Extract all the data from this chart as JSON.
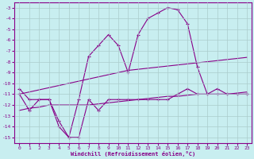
{
  "xlabel": "Windchill (Refroidissement éolien,°C)",
  "background_color": "#c8eef0",
  "grid_color": "#aacccc",
  "line_color": "#880088",
  "xlim": [
    -0.5,
    23.5
  ],
  "ylim": [
    -15.5,
    -2.5
  ],
  "yticks": [
    -15,
    -14,
    -13,
    -12,
    -11,
    -10,
    -9,
    -8,
    -7,
    -6,
    -5,
    -4,
    -3
  ],
  "xticks": [
    0,
    1,
    2,
    3,
    4,
    5,
    6,
    7,
    8,
    9,
    10,
    11,
    12,
    13,
    14,
    15,
    16,
    17,
    18,
    19,
    20,
    21,
    22,
    23
  ],
  "series": [
    {
      "x": [
        0,
        1,
        2,
        3,
        4,
        5,
        6,
        7,
        8,
        9,
        10,
        11,
        12,
        13,
        14,
        15,
        16,
        17,
        18,
        19,
        20,
        21,
        22,
        23
      ],
      "y": [
        -10.5,
        -11.5,
        -11.5,
        -11.5,
        -13.5,
        -15.0,
        -15.0,
        -11.5,
        -12.5,
        -11.5,
        -11.5,
        -11.5,
        -11.5,
        -11.5,
        -11.5,
        -11.5,
        -11.0,
        -10.5,
        -11.0,
        -11.0,
        -10.5,
        -11.0,
        -11.0,
        -11.0
      ],
      "has_markers": true,
      "lw": 0.8
    },
    {
      "x": [
        0,
        1,
        2,
        3,
        4,
        5,
        6,
        7,
        8,
        9,
        10,
        11,
        12,
        13,
        14,
        15,
        16,
        17,
        18,
        19,
        20,
        21,
        22,
        23
      ],
      "y": [
        -11.0,
        -12.5,
        -11.5,
        -11.5,
        -14.0,
        -15.0,
        -11.5,
        -7.5,
        -6.5,
        -5.5,
        -6.5,
        -9.0,
        -5.5,
        -4.0,
        -3.5,
        -3.0,
        -3.2,
        -4.5,
        -8.5,
        -11.0,
        -11.0,
        -11.0,
        -11.0,
        -11.0
      ],
      "has_markers": true,
      "lw": 0.8
    },
    {
      "x": [
        0,
        1,
        2,
        3,
        4,
        5,
        6,
        7,
        8,
        9,
        10,
        11,
        12,
        13,
        14,
        15,
        16,
        17,
        18,
        19,
        20,
        21,
        22,
        23
      ],
      "y": [
        -11.0,
        -10.8,
        -10.6,
        -10.4,
        -10.2,
        -10.0,
        -9.8,
        -9.6,
        -9.4,
        -9.2,
        -9.0,
        -8.8,
        -8.7,
        -8.6,
        -8.5,
        -8.4,
        -8.3,
        -8.2,
        -8.1,
        -8.0,
        -7.9,
        -7.8,
        -7.7,
        -7.6
      ],
      "has_markers": false,
      "lw": 0.8
    },
    {
      "x": [
        0,
        1,
        2,
        3,
        4,
        5,
        6,
        7,
        8,
        9,
        10,
        11,
        12,
        13,
        14,
        15,
        16,
        17,
        18,
        19,
        20,
        21,
        22,
        23
      ],
      "y": [
        -12.5,
        -12.3,
        -12.2,
        -12.0,
        -12.0,
        -12.0,
        -12.0,
        -12.0,
        -11.9,
        -11.8,
        -11.7,
        -11.6,
        -11.5,
        -11.4,
        -11.3,
        -11.2,
        -11.2,
        -11.1,
        -11.0,
        -11.0,
        -11.0,
        -11.0,
        -10.9,
        -10.8
      ],
      "has_markers": false,
      "lw": 0.8
    }
  ]
}
